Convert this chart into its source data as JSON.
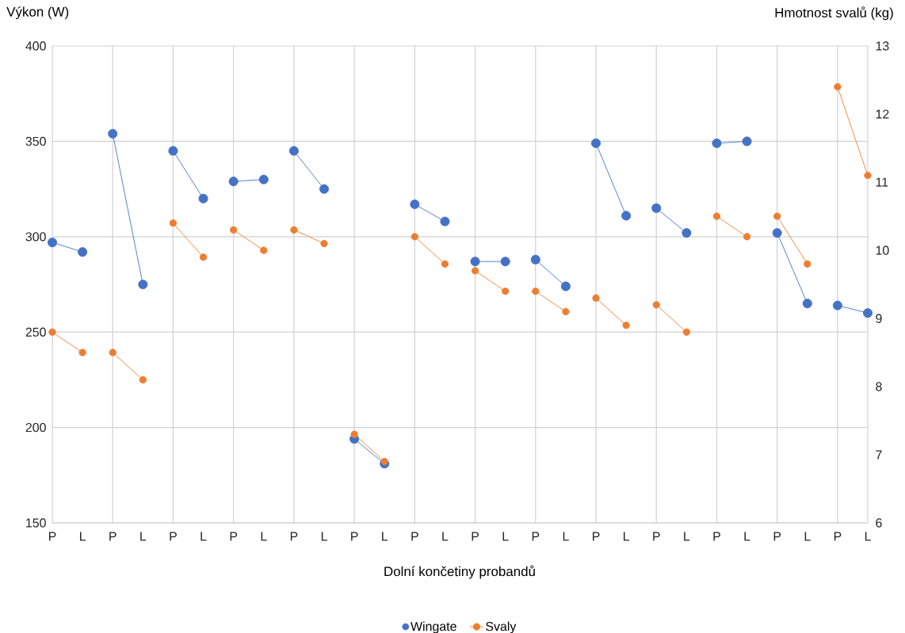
{
  "chart_data": {
    "type": "line",
    "xlabel": "Dolní končetiny probandů",
    "ylabel": "Výkon (W)",
    "y2label": "Hmotnost svalů (kg)",
    "categories": [
      "P",
      "L",
      "P",
      "L",
      "P",
      "L",
      "P",
      "L",
      "P",
      "L",
      "P",
      "L",
      "P",
      "L",
      "P",
      "L",
      "P",
      "L",
      "P",
      "L",
      "P",
      "L",
      "P",
      "L",
      "P",
      "L",
      "P",
      "L"
    ],
    "series": [
      {
        "name": "Wingate",
        "color": "#4472c4",
        "values": [
          297,
          292,
          354,
          275,
          345,
          320,
          329,
          330,
          345,
          325,
          194,
          181,
          317,
          308,
          287,
          287,
          288,
          274,
          349,
          311,
          315,
          302,
          349,
          350,
          302,
          265,
          264,
          260
        ]
      },
      {
        "name": "Svaly",
        "color": "#ed7d31",
        "axis": "y2",
        "values": [
          8.8,
          8.5,
          8.5,
          8.1,
          10.4,
          9.9,
          10.3,
          10.0,
          10.3,
          10.1,
          7.3,
          6.9,
          10.2,
          9.8,
          9.7,
          9.4,
          9.4,
          9.1,
          9.3,
          8.9,
          9.2,
          8.8,
          10.5,
          10.2,
          10.5,
          9.8,
          12.4,
          11.1
        ]
      }
    ],
    "ylim": [
      150,
      400
    ],
    "yticks": [
      150,
      200,
      250,
      300,
      350,
      400
    ],
    "y2lim": [
      6,
      13
    ],
    "y2ticks": [
      6,
      7,
      8,
      9,
      10,
      11,
      12,
      13
    ],
    "grid": true,
    "legend": "bottom",
    "marker": "circle"
  }
}
